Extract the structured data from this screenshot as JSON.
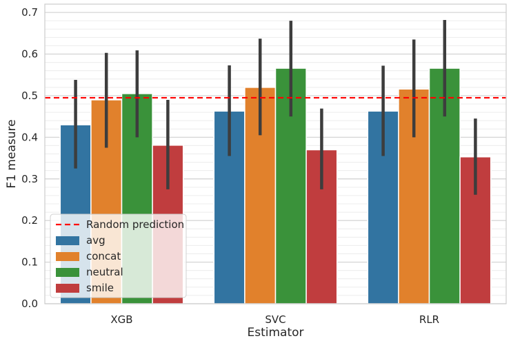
{
  "chart_data": {
    "type": "bar",
    "title": "",
    "xlabel": "Estimator",
    "ylabel": "F1 measure",
    "ylim": [
      0,
      0.72
    ],
    "yticks": [
      0.0,
      0.1,
      0.2,
      0.3,
      0.4,
      0.5,
      0.6,
      0.7
    ],
    "ytick_labels": [
      "0.0",
      "0.1",
      "0.2",
      "0.3",
      "0.4",
      "0.5",
      "0.6",
      "0.7"
    ],
    "minor_grid_step": 0.02,
    "grid": true,
    "categories": [
      "XGB",
      "SVC",
      "RLR"
    ],
    "series": [
      {
        "name": "avg",
        "color": "#3274a1",
        "values": [
          0.43,
          0.463,
          0.463
        ],
        "err_low": [
          0.325,
          0.355,
          0.355
        ],
        "err_high": [
          0.538,
          0.573,
          0.572
        ]
      },
      {
        "name": "concat",
        "color": "#e1812c",
        "values": [
          0.49,
          0.52,
          0.516
        ],
        "err_low": [
          0.375,
          0.405,
          0.4
        ],
        "err_high": [
          0.603,
          0.637,
          0.635
        ]
      },
      {
        "name": "neutral",
        "color": "#3a923a",
        "values": [
          0.505,
          0.566,
          0.566
        ],
        "err_low": [
          0.4,
          0.45,
          0.45
        ],
        "err_high": [
          0.609,
          0.68,
          0.682
        ]
      },
      {
        "name": "smile",
        "color": "#c03d3e",
        "values": [
          0.381,
          0.37,
          0.353
        ],
        "err_low": [
          0.275,
          0.275,
          0.262
        ],
        "err_high": [
          0.49,
          0.469,
          0.445
        ]
      }
    ],
    "reference_line": {
      "label": "Random prediction",
      "value": 0.495,
      "color": "#ff0000",
      "style": "dashed"
    },
    "legend": {
      "placement": "lower-left"
    }
  }
}
